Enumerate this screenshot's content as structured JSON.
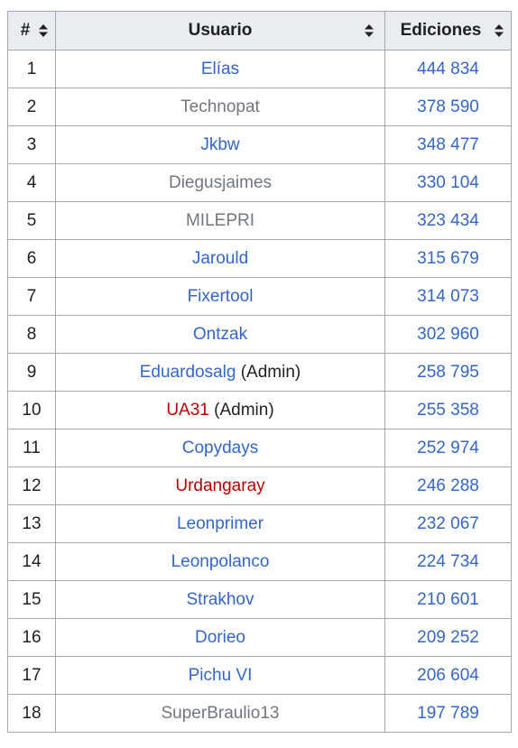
{
  "table": {
    "headers": {
      "rank": "#",
      "user": "Usuario",
      "edits": "Ediciones"
    },
    "rows": [
      {
        "rank": "1",
        "user": "Elías",
        "note": "",
        "edits": "444 834",
        "link": "blue"
      },
      {
        "rank": "2",
        "user": "Technopat",
        "note": "",
        "edits": "378 590",
        "link": "gray"
      },
      {
        "rank": "3",
        "user": "Jkbw",
        "note": "",
        "edits": "348 477",
        "link": "blue"
      },
      {
        "rank": "4",
        "user": "Diegusjaimes",
        "note": "",
        "edits": "330 104",
        "link": "gray"
      },
      {
        "rank": "5",
        "user": "MILEPRI",
        "note": "",
        "edits": "323 434",
        "link": "gray"
      },
      {
        "rank": "6",
        "user": "Jarould",
        "note": "",
        "edits": "315 679",
        "link": "blue"
      },
      {
        "rank": "7",
        "user": "Fixertool",
        "note": "",
        "edits": "314 073",
        "link": "blue"
      },
      {
        "rank": "8",
        "user": "Ontzak",
        "note": "",
        "edits": "302 960",
        "link": "blue"
      },
      {
        "rank": "9",
        "user": "Eduardosalg",
        "note": " (Admin)",
        "edits": "258 795",
        "link": "blue"
      },
      {
        "rank": "10",
        "user": "UA31",
        "note": " (Admin)",
        "edits": "255 358",
        "link": "red"
      },
      {
        "rank": "11",
        "user": "Copydays",
        "note": "",
        "edits": "252 974",
        "link": "blue"
      },
      {
        "rank": "12",
        "user": "Urdangaray",
        "note": "",
        "edits": "246 288",
        "link": "red"
      },
      {
        "rank": "13",
        "user": "Leonprimer",
        "note": "",
        "edits": "232 067",
        "link": "blue"
      },
      {
        "rank": "14",
        "user": "Leonpolanco",
        "note": "",
        "edits": "224 734",
        "link": "blue"
      },
      {
        "rank": "15",
        "user": "Strakhov",
        "note": "",
        "edits": "210 601",
        "link": "blue"
      },
      {
        "rank": "16",
        "user": "Dorieo",
        "note": "",
        "edits": "209 252",
        "link": "blue"
      },
      {
        "rank": "17",
        "user": "Pichu VI",
        "note": "",
        "edits": "206 604",
        "link": "blue"
      },
      {
        "rank": "18",
        "user": "SuperBraulio13",
        "note": "",
        "edits": "197 789",
        "link": "gray"
      }
    ]
  },
  "icons": {
    "sort": "sort-both-arrows-icon"
  },
  "colors": {
    "link_blue": "#3366cc",
    "link_gray": "#72777d",
    "link_red": "#ba0000",
    "header_bg": "#eaecf0",
    "border": "#a2a9b1"
  }
}
